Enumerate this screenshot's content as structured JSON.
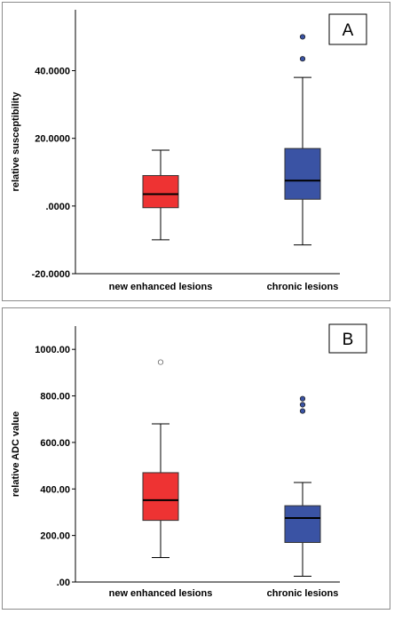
{
  "chart_data": [
    {
      "type": "box",
      "panel_label": "A",
      "ylabel": "relative susceptibility",
      "ylim": [
        -20,
        58
      ],
      "yticks": [
        -20,
        0,
        20,
        40
      ],
      "ytick_labels": [
        "-20.0000",
        ".0000",
        "20.0000",
        "40.0000"
      ],
      "categories": [
        "new enhanced lesions",
        "chronic lesions"
      ],
      "boxes": [
        {
          "name": "new enhanced lesions",
          "color": "#ee3333",
          "min": -10,
          "q1": -0.5,
          "median": 3.5,
          "q3": 9,
          "max": 16.5,
          "outliers": [],
          "outlier_style": "filled"
        },
        {
          "name": "chronic lesions",
          "color": "#3a53a4",
          "min": -11.5,
          "q1": 2,
          "median": 7.5,
          "q3": 17,
          "max": 38,
          "outliers": [
            43.5,
            50
          ],
          "outlier_style": "filled"
        }
      ],
      "grid": false
    },
    {
      "type": "box",
      "panel_label": "B",
      "ylabel": "relative ADC value",
      "ylim": [
        0,
        1100
      ],
      "yticks": [
        0,
        200,
        400,
        600,
        800,
        1000
      ],
      "ytick_labels": [
        ".00",
        "200.00",
        "400.00",
        "600.00",
        "800.00",
        "1000.00"
      ],
      "categories": [
        "new enhanced lesions",
        "chronic lesions"
      ],
      "boxes": [
        {
          "name": "new enhanced lesions",
          "color": "#ee3333",
          "min": 105,
          "q1": 265,
          "median": 352,
          "q3": 470,
          "max": 680,
          "outliers": [
            945
          ],
          "outlier_style": "open"
        },
        {
          "name": "chronic lesions",
          "color": "#3a53a4",
          "min": 25,
          "q1": 170,
          "median": 275,
          "q3": 328,
          "max": 428,
          "outliers": [
            735,
            762,
            788
          ],
          "outlier_style": "filled"
        }
      ],
      "grid": false
    }
  ]
}
